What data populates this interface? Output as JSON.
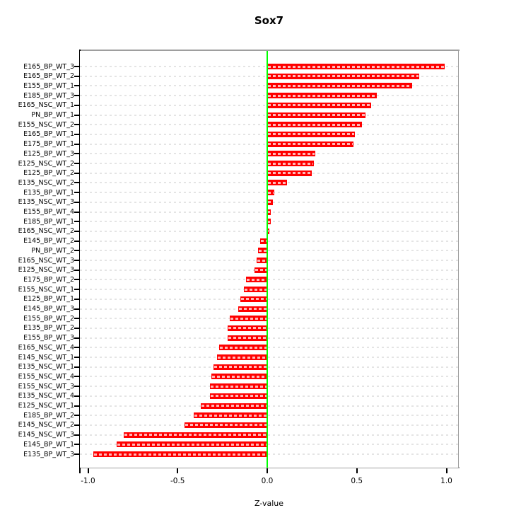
{
  "chart_data": {
    "type": "bar",
    "orientation": "horizontal",
    "title": "Sox7",
    "xlabel": "Z-value",
    "ylabel": "",
    "xlim": [
      -1.0,
      1.0
    ],
    "x_tick_values": [
      -1.0,
      -0.5,
      0.0,
      0.5,
      1.0
    ],
    "x_tick_labels": [
      "-1.0",
      "-0.5",
      "0.0",
      "0.5",
      "1.0"
    ],
    "grid": true,
    "bar_color": "#ff0000",
    "zero_line_color": "#00ff00",
    "categories": [
      "E165_BP_WT_3",
      "E165_BP_WT_2",
      "E155_BP_WT_1",
      "E185_BP_WT_3",
      "E165_NSC_WT_1",
      "PN_BP_WT_1",
      "E155_NSC_WT_2",
      "E165_BP_WT_1",
      "E175_BP_WT_1",
      "E125_BP_WT_3",
      "E125_NSC_WT_2",
      "E125_BP_WT_2",
      "E135_NSC_WT_2",
      "E135_BP_WT_1",
      "E135_NSC_WT_3",
      "E155_BP_WT_4",
      "E185_BP_WT_1",
      "E165_NSC_WT_2",
      "E145_BP_WT_2",
      "PN_BP_WT_2",
      "E165_NSC_WT_3",
      "E125_NSC_WT_3",
      "E175_BP_WT_2",
      "E155_NSC_WT_1",
      "E125_BP_WT_1",
      "E145_BP_WT_3",
      "E155_BP_WT_2",
      "E135_BP_WT_2",
      "E155_BP_WT_3",
      "E165_NSC_WT_4",
      "E145_NSC_WT_1",
      "E135_NSC_WT_1",
      "E155_NSC_WT_4",
      "E155_NSC_WT_3",
      "E135_NSC_WT_4",
      "E125_NSC_WT_1",
      "E185_BP_WT_2",
      "E145_NSC_WT_2",
      "E145_NSC_WT_3",
      "E145_BP_WT_1",
      "E135_BP_WT_3"
    ],
    "values": [
      0.99,
      0.85,
      0.81,
      0.61,
      0.58,
      0.55,
      0.53,
      0.49,
      0.48,
      0.27,
      0.26,
      0.25,
      0.11,
      0.04,
      0.03,
      0.02,
      0.02,
      0.01,
      -0.04,
      -0.05,
      -0.06,
      -0.07,
      -0.12,
      -0.13,
      -0.15,
      -0.16,
      -0.21,
      -0.22,
      -0.22,
      -0.27,
      -0.28,
      -0.3,
      -0.31,
      -0.32,
      -0.32,
      -0.37,
      -0.41,
      -0.46,
      -0.8,
      -0.84,
      -0.97
    ]
  }
}
